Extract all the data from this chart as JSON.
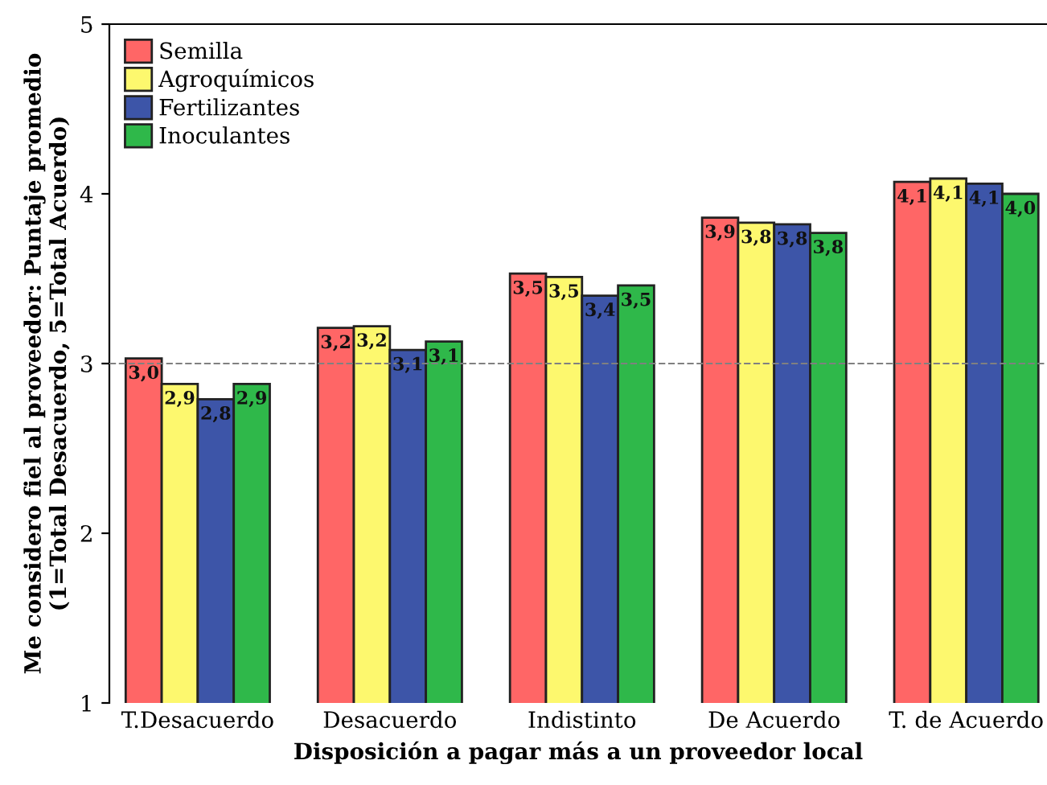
{
  "chart_data": {
    "type": "bar",
    "xlabel": "Disposición a pagar más a un proveedor local",
    "ylabel": "Me considero fiel al proveedor: Puntaje promedio\n(1=Total Desacuerdo, 5=Total Acuerdo)",
    "categories": [
      "T.Desacuerdo",
      "Desacuerdo",
      "Indistinto",
      "De Acuerdo",
      "T. de Acuerdo"
    ],
    "series": [
      {
        "name": "Semilla",
        "color": "#ff6666",
        "values": [
          3.03,
          3.21,
          3.53,
          3.86,
          4.07
        ],
        "value_labels": [
          "3,0",
          "3,2",
          "3,5",
          "3,9",
          "4,1"
        ]
      },
      {
        "name": "Agroquímicos",
        "color": "#fdf86e",
        "values": [
          2.88,
          3.22,
          3.51,
          3.83,
          4.09
        ],
        "value_labels": [
          "2,9",
          "3,2",
          "3,5",
          "3,8",
          "4,1"
        ]
      },
      {
        "name": "Fertilizantes",
        "color": "#3d55a8",
        "values": [
          2.79,
          3.08,
          3.4,
          3.82,
          4.06
        ],
        "value_labels": [
          "2,8",
          "3,1",
          "3,4",
          "3,8",
          "4,1"
        ]
      },
      {
        "name": "Inoculantes",
        "color": "#2fb84a",
        "values": [
          2.88,
          3.13,
          3.46,
          3.77,
          4.0
        ],
        "value_labels": [
          "2,9",
          "3,1",
          "3,5",
          "3,8",
          "4,0"
        ]
      }
    ],
    "ylim": [
      1,
      5
    ],
    "yticks": [
      1,
      2,
      3,
      4,
      5
    ],
    "ref_lines": [
      {
        "axis": "y",
        "value": 3,
        "color": "#808080",
        "line_style": "dashed"
      }
    ],
    "legend": "top left",
    "grid": false
  }
}
